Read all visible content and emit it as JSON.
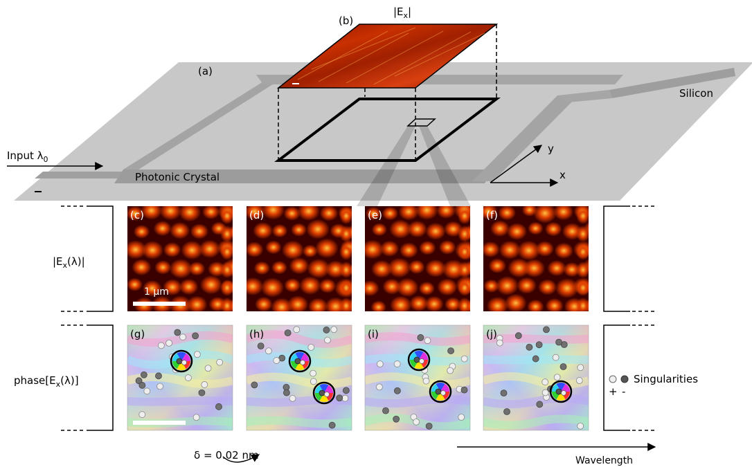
{
  "labels": {
    "panel_a": "(a)",
    "panel_b": "(b)",
    "ex_magnitude_top": "|E",
    "ex_magnitude_sub": "x",
    "ex_magnitude_close": "|",
    "silicon": "Silicon",
    "photonic_crystal": "Photonic Crystal",
    "input_prefix": "Input λ",
    "input_sub": "0",
    "axis_x": "x",
    "axis_y": "y",
    "scale_1um": "1 µm",
    "delta": "δ = 0.02 nm",
    "wavelength": "Wavelength",
    "singularities": "Singularities",
    "sign_plus": "+",
    "sign_minus": "-"
  },
  "rows": {
    "magnitude": {
      "p1": "|E",
      "sub": "x",
      "p2": "(λ)|"
    },
    "phase": {
      "p1": "phase[E",
      "sub": "x",
      "p2": "(λ)]"
    }
  },
  "panels": {
    "magnitude": [
      "(c)",
      "(d)",
      "(e)",
      "(f)"
    ],
    "phase": [
      "(g)",
      "(h)",
      "(i)",
      "(j)"
    ]
  },
  "colors": {
    "slab": "#c8c8c8",
    "waveguide": "#9a9a9a",
    "field_dark": "#3a0000",
    "field_mid": "#c82000",
    "field_bright": "#ffd040",
    "singularity_plus": "#e8e8e8",
    "singularity_minus": "#555555"
  }
}
